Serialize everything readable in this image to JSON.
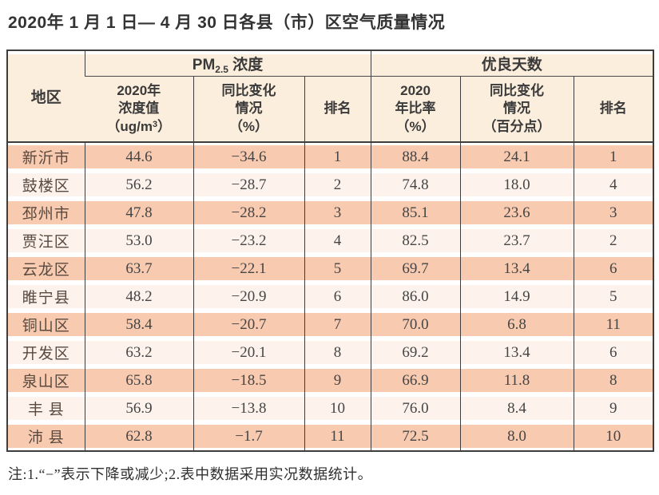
{
  "chart_data": {
    "type": "table",
    "title": "2020年 1 月 1 日— 4 月 30 日各县（市）区空气质量情况",
    "column_groups": [
      {
        "label": "PM2.5 浓度",
        "columns": [
          "2020年浓度值（ug/m3）",
          "同比变化情况（%）",
          "排名"
        ]
      },
      {
        "label": "优良天数",
        "columns": [
          "2020年比率（%）",
          "同比变化情况（百分点）",
          "排名"
        ]
      }
    ],
    "columns": [
      "地区",
      "2020年浓度值（ug/m3）",
      "同比变化情况（%）",
      "排名",
      "2020年比率（%）",
      "同比变化情况（百分点）",
      "排名"
    ],
    "rows": [
      [
        "新沂市",
        "44.6",
        "−34.6",
        "1",
        "88.4",
        "24.1",
        "1"
      ],
      [
        "鼓楼区",
        "56.2",
        "−28.7",
        "2",
        "74.8",
        "18.0",
        "4"
      ],
      [
        "邳州市",
        "47.8",
        "−28.2",
        "3",
        "85.1",
        "23.6",
        "3"
      ],
      [
        "贾汪区",
        "53.0",
        "−23.2",
        "4",
        "82.5",
        "23.7",
        "2"
      ],
      [
        "云龙区",
        "63.7",
        "−22.1",
        "5",
        "69.7",
        "13.4",
        "6"
      ],
      [
        "睢宁县",
        "48.2",
        "−20.9",
        "6",
        "86.0",
        "14.9",
        "5"
      ],
      [
        "铜山区",
        "58.4",
        "−20.7",
        "7",
        "70.0",
        "6.8",
        "11"
      ],
      [
        "开发区",
        "63.2",
        "−20.1",
        "8",
        "69.2",
        "13.4",
        "6"
      ],
      [
        "泉山区",
        "65.8",
        "−18.5",
        "9",
        "66.9",
        "11.8",
        "8"
      ],
      [
        "丰 县",
        "56.9",
        "−13.8",
        "10",
        "76.0",
        "8.4",
        "9"
      ],
      [
        "沛 县",
        "62.8",
        "−1.7",
        "11",
        "72.5",
        "8.0",
        "10"
      ]
    ],
    "footnote": "注:1.“−”表示下降或减少;2.表中数据采用实况数据统计。"
  },
  "header": {
    "region": "地区",
    "pm_group": {
      "prefix": "PM",
      "sub": "2.5",
      "suffix": " 浓度"
    },
    "good_group": "优良天数",
    "pm_value": {
      "l1": "2020年",
      "l2": "浓度值",
      "l3a": "（ug/m",
      "l3sup": "3",
      "l3b": "）"
    },
    "pm_change": {
      "l1": "同比变化",
      "l2": "情况",
      "l3": "（%）"
    },
    "pm_rank": "排名",
    "ratio": {
      "l1": "2020",
      "l2": "年比率",
      "l3": "（%）"
    },
    "ratio_change": {
      "l1": "同比变化",
      "l2": "情况",
      "l3": "（百分点）"
    },
    "ratio_rank": "排名"
  },
  "colors": {
    "row_odd_band": "#f8cab0",
    "row_even_band": "#fdf3ec",
    "header_bg": "#fbeedd",
    "border": "#3d3d3d",
    "title_text": "#333333",
    "data_text": "#454545"
  }
}
